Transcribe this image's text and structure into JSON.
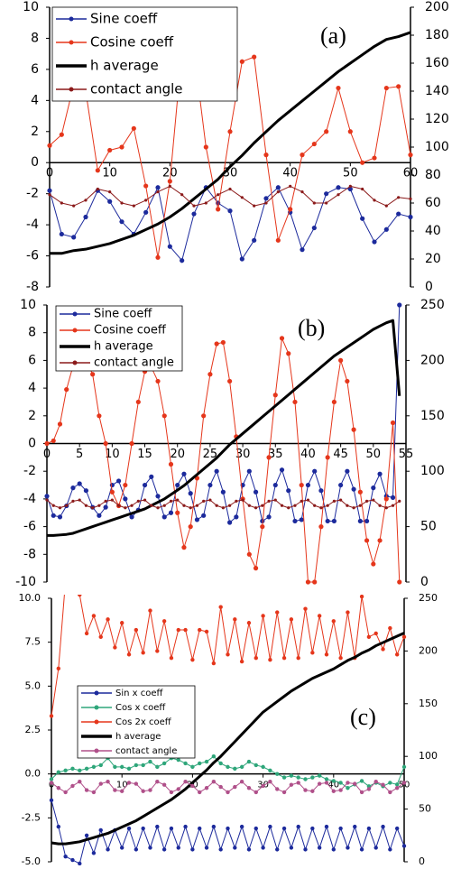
{
  "chart_data": [
    {
      "type": "line",
      "annotation": "(a)",
      "legend": "upper left",
      "x": [
        0,
        2,
        4,
        6,
        8,
        10,
        12,
        14,
        16,
        18,
        20,
        22,
        24,
        26,
        28,
        30,
        32,
        34,
        36,
        38,
        40,
        42,
        44,
        46,
        48,
        50,
        52,
        54,
        56,
        58,
        60
      ],
      "xlim": [
        0,
        60
      ],
      "xticks": [
        0,
        10,
        20,
        30,
        40,
        50,
        60
      ],
      "ylim": [
        -8,
        10
      ],
      "yticks": [
        -8,
        -6,
        -4,
        -2,
        0,
        2,
        4,
        6,
        8,
        10
      ],
      "y2lim": [
        0,
        200
      ],
      "y2ticks": [
        0,
        20,
        40,
        60,
        80,
        100,
        120,
        140,
        160,
        180,
        200
      ],
      "series": [
        {
          "name": "Sine coeff",
          "color": "#1c2a9c",
          "marker": "circle",
          "linewidth": 1,
          "values": [
            -1.8,
            -4.6,
            -4.8,
            -3.5,
            -1.8,
            -2.5,
            -3.8,
            -4.6,
            -3.2,
            -1.6,
            -5.4,
            -6.3,
            -3.3,
            -1.6,
            -2.6,
            -3.1,
            -6.2,
            -5.0,
            -2.3,
            -1.6,
            -3.2,
            -5.6,
            -4.2,
            -2.0,
            -1.6,
            -1.7,
            -3.6,
            -5.1,
            -4.3,
            -3.3,
            -3.5
          ]
        },
        {
          "name": "Cosine coeff",
          "color": "#e5361b",
          "marker": "circle",
          "linewidth": 1,
          "values": [
            1.1,
            1.8,
            5.0,
            4.6,
            -0.5,
            0.8,
            1.0,
            2.2,
            -1.5,
            -6.1,
            -1.2,
            7.2,
            7.2,
            1.0,
            -3.0,
            2.0,
            6.5,
            6.8,
            0.5,
            -5.0,
            -3.0,
            0.5,
            1.2,
            2.0,
            4.8,
            2.0,
            0,
            0.3,
            4.8,
            4.9,
            0.5
          ]
        },
        {
          "name": "h average",
          "color": "#000000",
          "marker": "none",
          "linewidth": 3,
          "axis": "y2",
          "values": [
            24,
            24,
            26,
            27,
            29,
            31,
            34,
            37,
            41,
            45,
            50,
            56,
            63,
            70,
            77,
            86,
            94,
            103,
            111,
            119,
            126,
            133,
            140,
            147,
            154,
            160,
            166,
            172,
            177,
            179,
            182
          ]
        },
        {
          "name": "contact angle",
          "color": "#8b1a1a",
          "marker": "circle",
          "linewidth": 1,
          "axis": "y2",
          "values": [
            66,
            60,
            58,
            62,
            70,
            68,
            60,
            58,
            62,
            68,
            72,
            66,
            58,
            60,
            66,
            70,
            64,
            58,
            60,
            68,
            72,
            68,
            60,
            60,
            66,
            72,
            70,
            62,
            58,
            64,
            63
          ]
        }
      ]
    },
    {
      "type": "line",
      "annotation": "(b)",
      "legend": "upper left",
      "x": [
        0,
        1,
        2,
        3,
        4,
        5,
        6,
        7,
        8,
        9,
        10,
        11,
        12,
        13,
        14,
        15,
        16,
        17,
        18,
        19,
        20,
        21,
        22,
        23,
        24,
        25,
        26,
        27,
        28,
        29,
        30,
        31,
        32,
        33,
        34,
        35,
        36,
        37,
        38,
        39,
        40,
        41,
        42,
        43,
        44,
        45,
        46,
        47,
        48,
        49,
        50,
        51,
        52,
        53,
        54
      ],
      "xlim": [
        0,
        55
      ],
      "xticks": [
        0,
        5,
        10,
        15,
        20,
        25,
        30,
        35,
        40,
        45,
        50,
        55
      ],
      "ylim": [
        -10,
        10
      ],
      "yticks": [
        -10,
        -8,
        -6,
        -4,
        -2,
        0,
        2,
        4,
        6,
        8,
        10
      ],
      "y2lim": [
        0,
        250
      ],
      "y2ticks": [
        0,
        50,
        100,
        150,
        200,
        250
      ],
      "series": [
        {
          "name": "Sine coeff",
          "color": "#1c2a9c",
          "marker": "circle",
          "linewidth": 1,
          "values": [
            -3.8,
            -5.2,
            -5.3,
            -4.5,
            -3.2,
            -2.9,
            -3.4,
            -4.6,
            -5.2,
            -4.6,
            -3.0,
            -2.7,
            -4.0,
            -5.3,
            -4.8,
            -3.0,
            -2.4,
            -3.8,
            -5.3,
            -5.0,
            -3.0,
            -2.2,
            -3.6,
            -5.5,
            -5.2,
            -3.0,
            -2.0,
            -3.5,
            -5.7,
            -5.3,
            -3.0,
            -2.0,
            -3.5,
            -5.6,
            -5.3,
            -3.0,
            -1.9,
            -3.4,
            -5.6,
            -5.5,
            -3.0,
            -2.0,
            -3.4,
            -5.6,
            -5.6,
            -3.0,
            -2.0,
            -3.3,
            -5.6,
            -5.6,
            -3.2,
            -2.2,
            -3.8,
            -3.9,
            10
          ]
        },
        {
          "name": "Cosine coeff",
          "color": "#e5361b",
          "marker": "circle",
          "linewidth": 1,
          "values": [
            0,
            0.2,
            1.4,
            3.9,
            5.6,
            6.3,
            6.0,
            5.0,
            2.0,
            0,
            -3.5,
            -4.5,
            -3.0,
            0,
            3.0,
            5.2,
            5.5,
            4.5,
            2.0,
            -1.5,
            -5.0,
            -7.5,
            -6.0,
            -2.5,
            2.0,
            5.0,
            7.2,
            7.3,
            4.5,
            0.5,
            -4.0,
            -8.0,
            -9.0,
            -6.0,
            -1.0,
            3.5,
            7.6,
            6.5,
            3.0,
            -3.0,
            -10.0,
            -10.0,
            -6.0,
            -1.0,
            3.0,
            6.0,
            4.5,
            1.0,
            -3.5,
            -7.0,
            -8.7,
            -7.0,
            -4.0,
            1.5,
            -10.0
          ]
        },
        {
          "name": "h average",
          "color": "#000000",
          "marker": "none",
          "linewidth": 3,
          "axis": "y2",
          "values": [
            42,
            42,
            42.5,
            43,
            44,
            46,
            48,
            50,
            52,
            54,
            56,
            58,
            60,
            62,
            64,
            66,
            69,
            72,
            75,
            79,
            83,
            87,
            92,
            97,
            102,
            107,
            112,
            118,
            124,
            129,
            134,
            139,
            144,
            149,
            154,
            159,
            164,
            169,
            174,
            179,
            184,
            189,
            194,
            199,
            204,
            208,
            212,
            216,
            220,
            224,
            228,
            231,
            234,
            236,
            168
          ]
        },
        {
          "name": "contact angle",
          "color": "#8b1a1a",
          "marker": "circle",
          "linewidth": 1,
          "axis": "y2",
          "values": [
            74,
            69,
            67,
            69,
            73,
            74,
            69,
            67,
            69,
            73,
            74,
            69,
            67,
            69,
            73,
            74,
            69,
            67,
            69,
            73,
            74,
            69,
            67,
            69,
            73,
            74,
            69,
            67,
            69,
            73,
            74,
            69,
            67,
            69,
            73,
            74,
            69,
            67,
            69,
            73,
            74,
            69,
            67,
            69,
            73,
            74,
            69,
            67,
            69,
            73,
            74,
            69,
            67,
            69,
            73
          ]
        }
      ]
    },
    {
      "type": "line",
      "annotation": "(c)",
      "legend": "upper left",
      "x": [
        0,
        1,
        2,
        3,
        4,
        5,
        6,
        7,
        8,
        9,
        10,
        11,
        12,
        13,
        14,
        15,
        16,
        17,
        18,
        19,
        20,
        21,
        22,
        23,
        24,
        25,
        26,
        27,
        28,
        29,
        30,
        31,
        32,
        33,
        34,
        35,
        36,
        37,
        38,
        39,
        40,
        41,
        42,
        43,
        44,
        45,
        46,
        47,
        48,
        49,
        50
      ],
      "xlim": [
        0,
        50
      ],
      "xticks": [
        0,
        10,
        20,
        30,
        40,
        50
      ],
      "ylim": [
        -5,
        10
      ],
      "yticks": [
        {
          "value": -5,
          "label": "-5.0"
        },
        {
          "value": -2.5,
          "label": "-2.5"
        },
        {
          "value": 0,
          "label": "0.0"
        },
        {
          "value": 2.5,
          "label": "2.5"
        },
        {
          "value": 5,
          "label": "5.0"
        },
        {
          "value": 7.5,
          "label": "7.5"
        },
        {
          "value": 10,
          "label": "10.0"
        }
      ],
      "y2lim": [
        0,
        250
      ],
      "y2ticks": [
        0,
        50,
        100,
        150,
        200,
        250
      ],
      "series": [
        {
          "name": "Sin x coeff",
          "color": "#1c2a9c",
          "marker": "circle",
          "linewidth": 1,
          "values": [
            -1.5,
            -3.0,
            -4.7,
            -4.9,
            -5.1,
            -3.5,
            -4.5,
            -3.2,
            -4.3,
            -3.2,
            -4.2,
            -3.1,
            -4.3,
            -3.1,
            -4.2,
            -3.0,
            -4.3,
            -3.1,
            -4.2,
            -3.0,
            -4.3,
            -3.1,
            -4.2,
            -3.0,
            -4.3,
            -3.1,
            -4.2,
            -3.0,
            -4.3,
            -3.1,
            -4.2,
            -3.0,
            -4.3,
            -3.1,
            -4.2,
            -3.0,
            -4.3,
            -3.1,
            -4.2,
            -3.0,
            -4.3,
            -3.1,
            -4.2,
            -3.0,
            -4.3,
            -3.1,
            -4.2,
            -3.0,
            -4.3,
            -3.1,
            -4.1
          ]
        },
        {
          "name": "Cos x coeff",
          "color": "#2ea67a",
          "marker": "circle",
          "linewidth": 1,
          "values": [
            -0.3,
            0.1,
            0.2,
            0.3,
            0.2,
            0.3,
            0.4,
            0.5,
            0.9,
            0.4,
            0.4,
            0.3,
            0.5,
            0.5,
            0.7,
            0.4,
            0.6,
            0.9,
            0.8,
            0.6,
            0.4,
            0.6,
            0.7,
            1.0,
            0.6,
            0.4,
            0.3,
            0.4,
            0.7,
            0.5,
            0.4,
            0.2,
            0.0,
            -0.2,
            -0.1,
            -0.2,
            -0.3,
            -0.2,
            -0.1,
            -0.3,
            -0.4,
            -0.5,
            -0.8,
            -0.6,
            -0.4,
            -0.7,
            -0.5,
            -0.7,
            -0.5,
            -0.6,
            0.4
          ]
        },
        {
          "name": "Cos 2x coeff",
          "color": "#e5361b",
          "marker": "circle",
          "linewidth": 1,
          "values": [
            3.3,
            6.0,
            11,
            12,
            10.2,
            8.0,
            9.0,
            7.8,
            8.8,
            7.2,
            8.6,
            6.8,
            8.2,
            6.9,
            9.3,
            7.0,
            8.7,
            6.6,
            8.2,
            8.2,
            6.5,
            8.2,
            8.1,
            6.3,
            9.5,
            6.8,
            8.8,
            6.4,
            8.6,
            6.6,
            9.0,
            6.5,
            9.2,
            6.6,
            8.8,
            6.6,
            9.4,
            6.9,
            9.0,
            6.8,
            8.7,
            6.6,
            9.2,
            6.6,
            10.1,
            7.8,
            8.0,
            7.1,
            8.3,
            6.8,
            7.8
          ]
        },
        {
          "name": "h average",
          "color": "#000000",
          "marker": "none",
          "linewidth": 3,
          "axis": "y2",
          "values": [
            18,
            17,
            17,
            18,
            19,
            21,
            23,
            25,
            27,
            30,
            33,
            36,
            39,
            43,
            47,
            51,
            55,
            59,
            64,
            69,
            75,
            81,
            87,
            94,
            100,
            107,
            114,
            121,
            128,
            135,
            142,
            147,
            152,
            157,
            162,
            166,
            170,
            174,
            177,
            180,
            183,
            187,
            191,
            194,
            198,
            201,
            205,
            208,
            211,
            214,
            217
          ]
        },
        {
          "name": "contact angle",
          "color": "#b0508a",
          "marker": "circle",
          "linewidth": 1,
          "axis": "y2",
          "values": [
            75,
            70,
            66,
            72,
            76,
            68,
            66,
            74,
            76,
            68,
            67,
            75,
            74,
            67,
            68,
            76,
            73,
            66,
            69,
            76,
            72,
            66,
            70,
            76,
            71,
            66,
            71,
            76,
            70,
            66,
            72,
            76,
            69,
            66,
            73,
            75,
            68,
            67,
            74,
            75,
            67,
            68,
            75,
            74,
            66,
            69,
            76,
            73,
            66,
            70,
            75
          ]
        }
      ]
    }
  ]
}
